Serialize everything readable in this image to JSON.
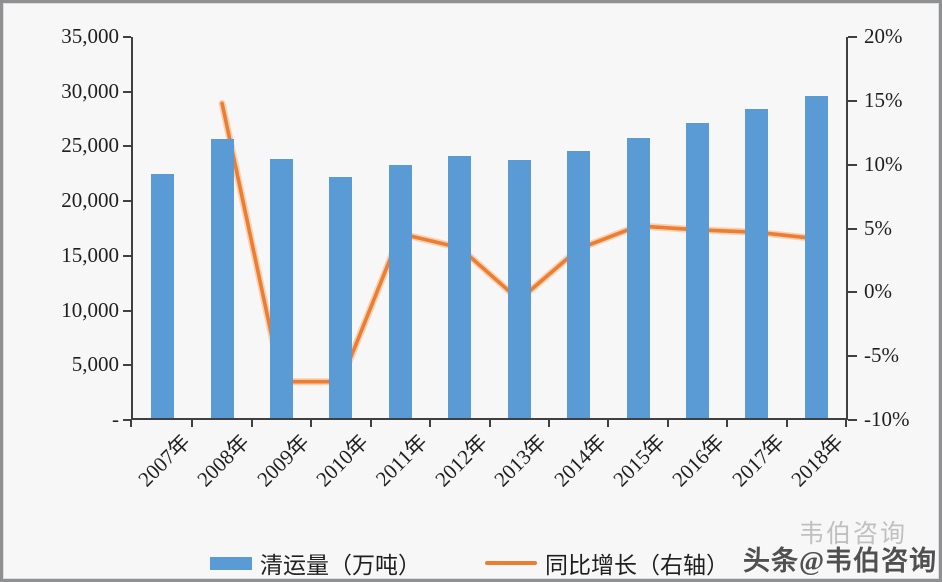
{
  "chart_data": {
    "type": "bar",
    "subtype": "combo-bar-line",
    "title": "",
    "categories": [
      "2007年",
      "2008年",
      "2009年",
      "2010年",
      "2011年",
      "2012年",
      "2013年",
      "2014年",
      "2015年",
      "2016年",
      "2017年",
      "2018年"
    ],
    "series": [
      {
        "name": "清运量（万吨）",
        "type": "bar",
        "axis": "left",
        "color": "#5B9BD5",
        "values": [
          22300,
          25500,
          23700,
          22000,
          23100,
          23900,
          23600,
          24400,
          25600,
          27000,
          28200,
          29400
        ]
      },
      {
        "name": "同比增长（右轴）",
        "type": "line",
        "axis": "right",
        "unit": "%",
        "color": "#ED7D31",
        "values": [
          null,
          14.8,
          -7.0,
          -7.0,
          4.6,
          3.5,
          -0.6,
          3.4,
          5.2,
          4.9,
          4.7,
          4.2
        ]
      }
    ],
    "left_axis": {
      "min": 0,
      "max": 35000,
      "step": 5000,
      "tick_labels": [
        "35,000",
        "30,000",
        "25,000",
        "20,000",
        "15,000",
        "10,000",
        "5,000",
        "-"
      ]
    },
    "right_axis": {
      "min": -10,
      "max": 20,
      "step": 5,
      "tick_labels": [
        "20%",
        "15%",
        "10%",
        "5%",
        "0%",
        "-5%",
        "-10%"
      ]
    },
    "grid": false,
    "legend_position": "bottom"
  },
  "legend": {
    "bar_label": "清运量（万吨）",
    "line_label": "同比增长（右轴）"
  },
  "watermark": {
    "ghost_text": "韦伯咨询",
    "main_text": "头条@韦伯咨询"
  },
  "colors": {
    "bar": "#5B9BD5",
    "line": "#ED7D31",
    "line_halo": "#F6B27A",
    "axis": "#404040",
    "text": "#1f1f1f",
    "background": "#f7f7f8",
    "frame_border": "#8f9092"
  }
}
